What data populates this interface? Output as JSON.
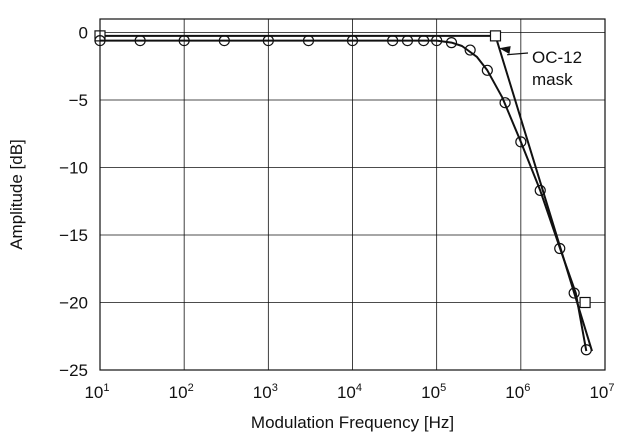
{
  "chart_data": {
    "type": "line",
    "title": "",
    "xlabel": "Modulation Frequency [Hz]",
    "ylabel": "Amplitude [dB]",
    "x_scale": "log",
    "xlim": [
      10,
      10000000
    ],
    "ylim": [
      -25,
      1
    ],
    "grid": true,
    "x_ticks": [
      {
        "base": "10",
        "exp": "1"
      },
      {
        "base": "10",
        "exp": "2"
      },
      {
        "base": "10",
        "exp": "3"
      },
      {
        "base": "10",
        "exp": "4"
      },
      {
        "base": "10",
        "exp": "5"
      },
      {
        "base": "10",
        "exp": "6"
      },
      {
        "base": "10",
        "exp": "7"
      }
    ],
    "y_ticks": [
      {
        "value": 0,
        "label": "0"
      },
      {
        "value": -5,
        "label": "−5"
      },
      {
        "value": -10,
        "label": "−10"
      },
      {
        "value": -15,
        "label": "−15"
      },
      {
        "value": -20,
        "label": "−20"
      },
      {
        "value": -25,
        "label": "−25"
      }
    ],
    "series": [
      {
        "marker": "square",
        "line": [
          [
            10,
            -0.25
          ],
          [
            500000,
            -0.25
          ],
          [
            7000000,
            -23.6
          ]
        ],
        "markers": [
          [
            10,
            -0.25
          ],
          [
            500000,
            -0.25
          ],
          [
            5800000,
            -20
          ]
        ]
      },
      {
        "marker": "circle",
        "line": [
          [
            10,
            -0.6
          ],
          [
            100000,
            -0.6
          ],
          [
            150000,
            -0.75
          ],
          [
            200000,
            -1.0
          ],
          [
            300000,
            -1.8
          ],
          [
            400000,
            -2.8
          ],
          [
            600000,
            -4.8
          ],
          [
            1000000,
            -8.1
          ],
          [
            1700000,
            -11.7
          ],
          [
            3000000,
            -16.2
          ],
          [
            4500000,
            -19.3
          ],
          [
            6000000,
            -23.6
          ]
        ],
        "markers": [
          [
            10,
            -0.6
          ],
          [
            30,
            -0.6
          ],
          [
            100,
            -0.6
          ],
          [
            300,
            -0.6
          ],
          [
            1000,
            -0.6
          ],
          [
            3000,
            -0.6
          ],
          [
            10000,
            -0.6
          ],
          [
            30000,
            -0.6
          ],
          [
            45000,
            -0.6
          ],
          [
            70000,
            -0.6
          ],
          [
            100000,
            -0.6
          ],
          [
            150000,
            -0.75
          ],
          [
            250000,
            -1.3
          ],
          [
            400000,
            -2.8
          ],
          [
            650000,
            -5.2
          ],
          [
            1000000,
            -8.1
          ],
          [
            1700000,
            -11.7
          ],
          [
            2900000,
            -16.0
          ],
          [
            4300000,
            -19.3
          ],
          [
            6000000,
            -23.5
          ]
        ]
      }
    ],
    "annotations": [
      {
        "lines": [
          "OC-12",
          "mask"
        ],
        "points_to": [
          600000,
          -1.2
        ]
      }
    ]
  }
}
